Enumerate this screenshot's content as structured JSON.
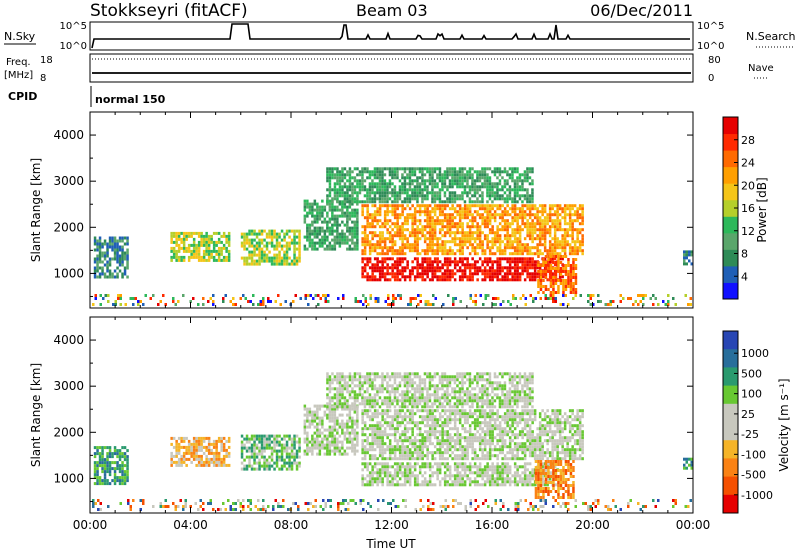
{
  "header": {
    "station": "Stokkseyri (fitACF)",
    "beam": "Beam 03",
    "date": "06/Dec/2011"
  },
  "top_panels": {
    "nsky_label": "N.Sky",
    "nsky_ticks": [
      "10^5",
      "10^0"
    ],
    "nsearch_label": "N.Search",
    "nsearch_ticks": [
      "10^5",
      "10^0"
    ],
    "freq_label_1": "Freq.",
    "freq_label_2": "[MHz]",
    "freq_ticks": [
      "18",
      "8"
    ],
    "nave_label": "Nave",
    "nave_ticks": [
      "80",
      "0"
    ],
    "cpid_label": "CPID",
    "cpid_value": "normal 150"
  },
  "colors": {
    "power_scale": [
      "#1010ff",
      "#1f5fb6",
      "#2e8b57",
      "#5aa66b",
      "#2db85a",
      "#b5cf2a",
      "#f5c518",
      "#ff9f00",
      "#ff6a00",
      "#ff2a00",
      "#e60000"
    ],
    "velocity_scale": [
      "#2846b4",
      "#286e9b",
      "#2a9a6e",
      "#68c832",
      "#c8c8be",
      "#c8c8be",
      "#f5b428",
      "#fa8214",
      "#f55000",
      "#e60000"
    ]
  },
  "chart_data": [
    {
      "type": "heatmap",
      "panel": "power",
      "ylabel": "Slant Range [km]",
      "yticks": [
        "4000",
        "3000",
        "2000",
        "1000"
      ],
      "ylim": [
        250,
        4500
      ],
      "xlim": [
        0,
        24
      ],
      "colorbar_label": "Power [dB]",
      "colorbar_ticks": [
        "28",
        "24",
        "20",
        "16",
        "12",
        "8",
        "4"
      ],
      "regions": [
        {
          "t": [
            0.15,
            1.5
          ],
          "r": [
            900,
            1800
          ],
          "level": 2
        },
        {
          "t": [
            3.2,
            5.5
          ],
          "r": [
            1300,
            1900
          ],
          "level": 5
        },
        {
          "t": [
            6.0,
            8.3
          ],
          "r": [
            1200,
            1950
          ],
          "level": 5
        },
        {
          "t": [
            8.5,
            10.6
          ],
          "r": [
            1500,
            2600
          ],
          "level": 3
        },
        {
          "t": [
            10.8,
            19.6
          ],
          "r": [
            1400,
            2500
          ],
          "level": 7
        },
        {
          "t": [
            10.8,
            18.8
          ],
          "r": [
            850,
            1350
          ],
          "level": 10
        },
        {
          "t": [
            17.8,
            19.3
          ],
          "r": [
            600,
            1400
          ],
          "level": 8
        },
        {
          "t": [
            9.4,
            17.6
          ],
          "r": [
            2550,
            3300
          ],
          "level": 3
        },
        {
          "t": [
            23.6,
            23.9
          ],
          "r": [
            1200,
            1500
          ],
          "level": 2
        }
      ]
    },
    {
      "type": "heatmap",
      "panel": "velocity",
      "ylabel": "Slant Range [km]",
      "yticks": [
        "4000",
        "3000",
        "2000",
        "1000"
      ],
      "ylim": [
        250,
        4500
      ],
      "xlim": [
        0,
        24
      ],
      "xlabel": "Time UT",
      "xticks": [
        "00:00",
        "04:00",
        "08:00",
        "12:00",
        "16:00",
        "20:00",
        "00:00"
      ],
      "colorbar_label": "Velocity [m s⁻¹]",
      "colorbar_ticks": [
        "1000",
        "500",
        "100",
        "25",
        "-25",
        "-100",
        "-500",
        "-1000"
      ],
      "regions": [
        {
          "t": [
            0.15,
            1.5
          ],
          "r": [
            900,
            1700
          ],
          "level": 2
        },
        {
          "t": [
            3.2,
            5.5
          ],
          "r": [
            1300,
            1900
          ],
          "level": 6
        },
        {
          "t": [
            6.0,
            8.3
          ],
          "r": [
            1200,
            1950
          ],
          "level": 3
        },
        {
          "t": [
            8.5,
            10.6
          ],
          "r": [
            1500,
            2600
          ],
          "level": 4
        },
        {
          "t": [
            10.8,
            19.6
          ],
          "r": [
            1400,
            2500
          ],
          "level": 4
        },
        {
          "t": [
            10.8,
            18.6
          ],
          "r": [
            850,
            1350
          ],
          "level": 4
        },
        {
          "t": [
            17.7,
            19.2
          ],
          "r": [
            600,
            1400
          ],
          "level": 7
        },
        {
          "t": [
            9.4,
            17.6
          ],
          "r": [
            2550,
            3300
          ],
          "level": 4
        },
        {
          "t": [
            23.6,
            23.9
          ],
          "r": [
            1200,
            1450
          ],
          "level": 2
        }
      ]
    }
  ]
}
